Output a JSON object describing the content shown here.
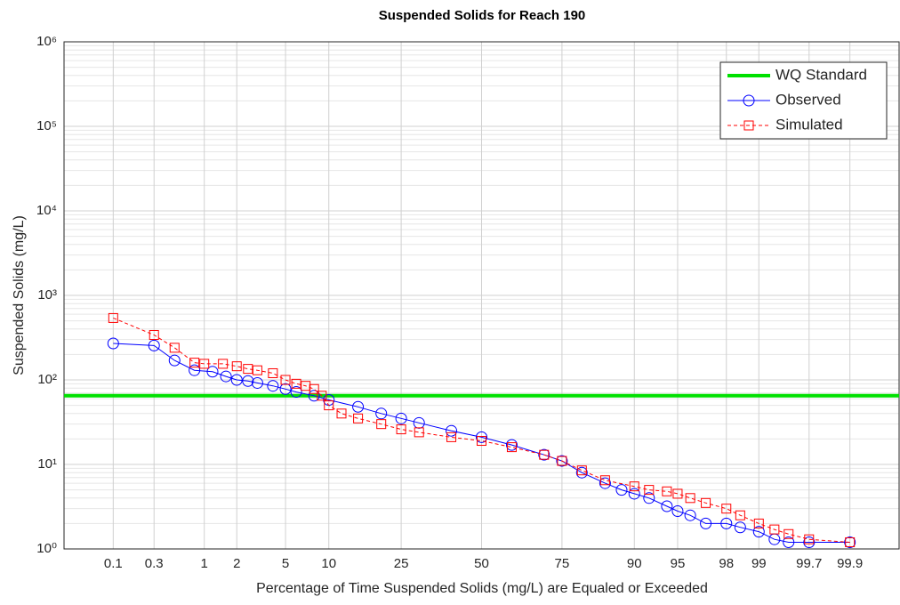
{
  "chart_data": {
    "type": "line",
    "title": "Suspended Solids for Reach 190",
    "xlabel": "Percentage of Time Suspended Solids (mg/L) are Equaled or Exceeded",
    "ylabel": "Suspended Solids (mg/L)",
    "xscale": "probability",
    "yscale": "log",
    "grid": true,
    "legend": "upper right",
    "xlim": [
      0.023,
      99.977
    ],
    "xticks": [
      0.1,
      0.3,
      1,
      2,
      5,
      10,
      25,
      50,
      75,
      90,
      95,
      98,
      99,
      99.7,
      99.9
    ],
    "ylim": [
      1,
      1000000
    ],
    "yticks": [
      {
        "value": 1,
        "label": "10⁰"
      },
      {
        "value": 10,
        "label": "10¹"
      },
      {
        "value": 100,
        "label": "10²"
      },
      {
        "value": 1000,
        "label": "10³"
      },
      {
        "value": 10000,
        "label": "10⁴"
      },
      {
        "value": 100000,
        "label": "10⁵"
      },
      {
        "value": 1000000,
        "label": "10⁶"
      }
    ],
    "reference_line": {
      "name": "WQ Standard",
      "value": 65,
      "color": "#00e000"
    },
    "series": [
      {
        "name": "Observed",
        "color": "#0000ff",
        "marker": "circle",
        "linestyle": "solid",
        "x": [
          0.1,
          0.3,
          0.5,
          0.8,
          1.2,
          1.6,
          2,
          2.5,
          3,
          4,
          5,
          6,
          8,
          10,
          15,
          20,
          25,
          30,
          40,
          50,
          60,
          70,
          75,
          80,
          85,
          88,
          90,
          92,
          94,
          95,
          96,
          97,
          98,
          98.5,
          99,
          99.3,
          99.5,
          99.7,
          99.9
        ],
        "values": [
          270,
          255,
          170,
          130,
          125,
          110,
          100,
          97,
          92,
          85,
          78,
          72,
          65,
          58,
          48,
          40,
          35,
          31,
          25,
          21,
          17,
          13,
          11,
          8,
          6,
          5,
          4.5,
          4,
          3.2,
          2.8,
          2.5,
          2,
          2,
          1.8,
          1.6,
          1.3,
          1.2,
          1.2,
          1.2
        ]
      },
      {
        "name": "Simulated",
        "color": "#ff0000",
        "marker": "square",
        "linestyle": "dashed",
        "x": [
          0.1,
          0.3,
          0.5,
          0.8,
          1,
          1.5,
          2,
          2.5,
          3,
          4,
          5,
          6,
          7,
          8,
          9,
          10,
          12,
          15,
          20,
          25,
          30,
          40,
          50,
          60,
          70,
          75,
          80,
          85,
          90,
          92,
          94,
          95,
          96,
          97,
          98,
          98.5,
          99,
          99.3,
          99.5,
          99.7,
          99.9
        ],
        "values": [
          540,
          340,
          240,
          160,
          155,
          155,
          145,
          135,
          130,
          120,
          100,
          90,
          85,
          78,
          65,
          50,
          40,
          35,
          30,
          26,
          24,
          21,
          19,
          16,
          13,
          11,
          8.5,
          6.5,
          5.5,
          5,
          4.8,
          4.5,
          4,
          3.5,
          3,
          2.5,
          2,
          1.7,
          1.5,
          1.3,
          1.2
        ]
      }
    ]
  }
}
